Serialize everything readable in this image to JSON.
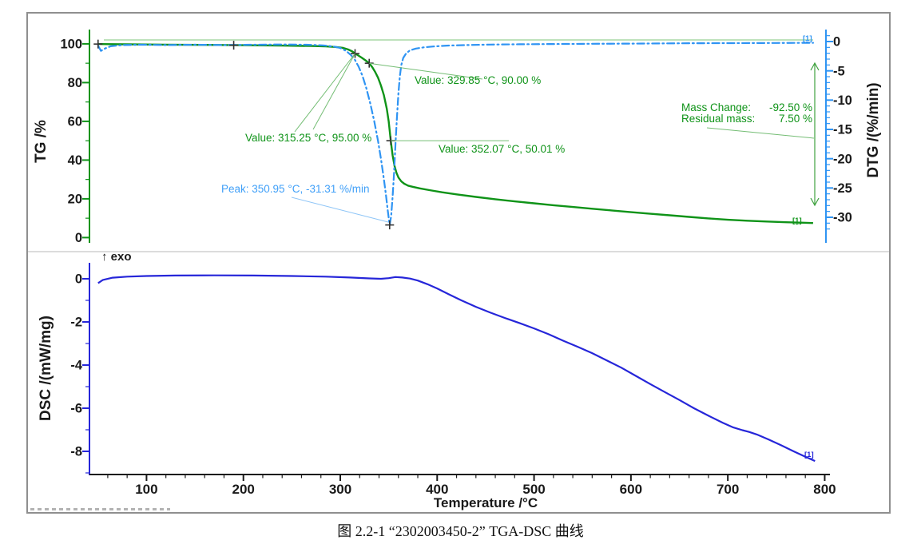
{
  "figure": {
    "caption": "图 2.2-1 “2302003450-2” TGA-DSC 曲线"
  },
  "colors": {
    "tg_green": "#0f9318",
    "dtg_blue": "#2f94f3",
    "dsc_blue": "#2626d9",
    "axis_text": "#1a1a1a",
    "frame_gray": "#8f8f8f"
  },
  "chart_data": [
    {
      "id": "tg-dtg-panel",
      "type": "line",
      "xlabel": "Temperature /°C",
      "x_ticks": [
        100,
        200,
        300,
        400,
        500,
        600,
        700,
        800
      ],
      "x_minor_step": 20,
      "xlim": [
        45,
        812
      ],
      "left_axis": {
        "label": "TG /%",
        "ticks": [
          0,
          20,
          40,
          60,
          80,
          100
        ],
        "minor_step": 10,
        "range": [
          0,
          100
        ],
        "color": "#0f9318"
      },
      "right_axis": {
        "label": "DTG /(%/min)",
        "ticks": [
          0,
          -5,
          -10,
          -15,
          -20,
          -25,
          -30
        ],
        "minor_step": 1,
        "range": [
          1,
          -32
        ],
        "color": "#2f94f3"
      },
      "grid": false,
      "series": [
        {
          "name": "TG",
          "unit": "%",
          "color": "#0f9318",
          "line_style": "solid",
          "tag": "[1]",
          "points": [
            [
              50,
              99.9
            ],
            [
              80,
              99.75
            ],
            [
              120,
              99.6
            ],
            [
              160,
              99.45
            ],
            [
              200,
              99.3
            ],
            [
              240,
              99.1
            ],
            [
              270,
              98.9
            ],
            [
              285,
              98.7
            ],
            [
              295,
              98.4
            ],
            [
              303,
              97.9
            ],
            [
              308,
              97.1
            ],
            [
              312,
              96.2
            ],
            [
              315.25,
              95.0
            ],
            [
              318,
              94.2
            ],
            [
              322,
              92.9
            ],
            [
              326,
              91.5
            ],
            [
              329.85,
              90.0
            ],
            [
              333,
              88.0
            ],
            [
              336,
              85.5
            ],
            [
              339,
              82.5
            ],
            [
              342,
              78.5
            ],
            [
              345,
              73.5
            ],
            [
              348,
              66.5
            ],
            [
              350,
              60.0
            ],
            [
              352.07,
              50.01
            ],
            [
              354,
              42.5
            ],
            [
              356,
              37.0
            ],
            [
              358,
              33.5
            ],
            [
              360,
              31.0
            ],
            [
              363,
              29.0
            ],
            [
              366,
              27.8
            ],
            [
              370,
              26.8
            ],
            [
              375,
              26.2
            ],
            [
              382,
              25.4
            ],
            [
              392,
              24.5
            ],
            [
              405,
              23.4
            ],
            [
              420,
              22.3
            ],
            [
              440,
              21.0
            ],
            [
              460,
              19.8
            ],
            [
              480,
              18.7
            ],
            [
              500,
              17.7
            ],
            [
              520,
              16.7
            ],
            [
              540,
              15.8
            ],
            [
              560,
              14.9
            ],
            [
              580,
              14.0
            ],
            [
              600,
              13.1
            ],
            [
              620,
              12.3
            ],
            [
              640,
              11.5
            ],
            [
              660,
              10.7
            ],
            [
              680,
              9.9
            ],
            [
              700,
              9.2
            ],
            [
              720,
              8.7
            ],
            [
              740,
              8.3
            ],
            [
              760,
              7.9
            ],
            [
              775,
              7.7
            ],
            [
              788,
              7.5
            ]
          ]
        },
        {
          "name": "DTG",
          "unit": "%/min",
          "color": "#2f94f3",
          "line_style": "dash-dot",
          "tag": "[1]",
          "points": [
            [
              50,
              -0.7
            ],
            [
              53,
              -1.6
            ],
            [
              57,
              -1.2
            ],
            [
              63,
              -0.8
            ],
            [
              75,
              -0.6
            ],
            [
              95,
              -0.55
            ],
            [
              120,
              -0.6
            ],
            [
              150,
              -0.55
            ],
            [
              180,
              -0.6
            ],
            [
              210,
              -0.55
            ],
            [
              240,
              -0.5
            ],
            [
              265,
              -0.55
            ],
            [
              282,
              -0.65
            ],
            [
              293,
              -0.85
            ],
            [
              300,
              -1.1
            ],
            [
              306,
              -1.6
            ],
            [
              311,
              -2.3
            ],
            [
              315,
              -3.1
            ],
            [
              319,
              -4.3
            ],
            [
              323,
              -5.9
            ],
            [
              327,
              -8.0
            ],
            [
              331,
              -10.6
            ],
            [
              335,
              -13.6
            ],
            [
              339,
              -17.0
            ],
            [
              342,
              -20.0
            ],
            [
              345,
              -23.5
            ],
            [
              347,
              -26.0
            ],
            [
              349,
              -28.8
            ],
            [
              350.95,
              -31.31
            ],
            [
              352.5,
              -29.8
            ],
            [
              354,
              -26.5
            ],
            [
              355.5,
              -22.5
            ],
            [
              357,
              -17.5
            ],
            [
              358.5,
              -12.8
            ],
            [
              360,
              -8.8
            ],
            [
              361.5,
              -5.9
            ],
            [
              363,
              -4.0
            ],
            [
              365,
              -2.8
            ],
            [
              368,
              -2.0
            ],
            [
              372,
              -1.5
            ],
            [
              378,
              -1.2
            ],
            [
              386,
              -1.0
            ],
            [
              396,
              -0.85
            ],
            [
              410,
              -0.7
            ],
            [
              430,
              -0.6
            ],
            [
              455,
              -0.52
            ],
            [
              485,
              -0.47
            ],
            [
              520,
              -0.42
            ],
            [
              560,
              -0.38
            ],
            [
              600,
              -0.35
            ],
            [
              650,
              -0.3
            ],
            [
              700,
              -0.27
            ],
            [
              750,
              -0.24
            ],
            [
              788,
              -0.22
            ]
          ]
        }
      ],
      "markers": {
        "tg": [
          [
            50,
            99.9
          ],
          [
            190,
            99.3
          ],
          [
            315.25,
            95.0
          ],
          [
            329.85,
            90.0
          ],
          [
            352.07,
            50.01
          ]
        ],
        "dtg": [
          [
            350.95,
            -31.31
          ]
        ]
      },
      "annotations": [
        {
          "id": "value-315",
          "text": "Value: 315.25 °C, 95.00 %",
          "color": "#0f9318"
        },
        {
          "id": "value-329",
          "text": "Value: 329.85 °C, 90.00 %",
          "color": "#0f9318"
        },
        {
          "id": "value-352",
          "text": "Value: 352.07 °C, 50.01 %",
          "color": "#0f9318"
        },
        {
          "id": "peak",
          "text": "Peak: 350.95 °C, -31.31 %/min",
          "color": "#41a0f8"
        },
        {
          "id": "mass-change",
          "label": "Mass Change:",
          "value": "-92.50 %",
          "color": "#0f9318"
        },
        {
          "id": "residual-mass",
          "label": "Residual mass:",
          "value": "7.50 %",
          "color": "#0f9318"
        }
      ]
    },
    {
      "id": "dsc-panel",
      "type": "line",
      "left_axis": {
        "label": "DSC /(mW/mg)",
        "ticks": [
          0,
          -2,
          -4,
          -6,
          -8
        ],
        "minor_step": 1,
        "range": [
          0.8,
          -9.2
        ],
        "color": "#2626d9"
      },
      "exo_label": "↑ exo",
      "grid": false,
      "series": [
        {
          "name": "DSC",
          "unit": "mW/mg",
          "color": "#2626d9",
          "line_style": "solid",
          "tag": "[1]",
          "points": [
            [
              50,
              -0.2
            ],
            [
              55,
              -0.05
            ],
            [
              65,
              0.05
            ],
            [
              80,
              0.1
            ],
            [
              100,
              0.13
            ],
            [
              130,
              0.15
            ],
            [
              170,
              0.16
            ],
            [
              210,
              0.15
            ],
            [
              250,
              0.13
            ],
            [
              285,
              0.1
            ],
            [
              310,
              0.06
            ],
            [
              330,
              0.02
            ],
            [
              342,
              0.0
            ],
            [
              350,
              0.03
            ],
            [
              357,
              0.08
            ],
            [
              364,
              0.06
            ],
            [
              372,
              0.01
            ],
            [
              380,
              -0.08
            ],
            [
              390,
              -0.25
            ],
            [
              400,
              -0.45
            ],
            [
              412,
              -0.72
            ],
            [
              425,
              -1.0
            ],
            [
              440,
              -1.3
            ],
            [
              455,
              -1.57
            ],
            [
              470,
              -1.82
            ],
            [
              485,
              -2.05
            ],
            [
              500,
              -2.3
            ],
            [
              515,
              -2.57
            ],
            [
              530,
              -2.87
            ],
            [
              545,
              -3.15
            ],
            [
              560,
              -3.45
            ],
            [
              575,
              -3.78
            ],
            [
              590,
              -4.12
            ],
            [
              605,
              -4.5
            ],
            [
              620,
              -4.88
            ],
            [
              635,
              -5.25
            ],
            [
              650,
              -5.62
            ],
            [
              665,
              -6.0
            ],
            [
              680,
              -6.35
            ],
            [
              695,
              -6.68
            ],
            [
              705,
              -6.88
            ],
            [
              715,
              -7.02
            ],
            [
              722,
              -7.1
            ],
            [
              730,
              -7.22
            ],
            [
              742,
              -7.45
            ],
            [
              755,
              -7.72
            ],
            [
              768,
              -8.0
            ],
            [
              780,
              -8.25
            ],
            [
              790,
              -8.45
            ]
          ]
        }
      ]
    }
  ]
}
